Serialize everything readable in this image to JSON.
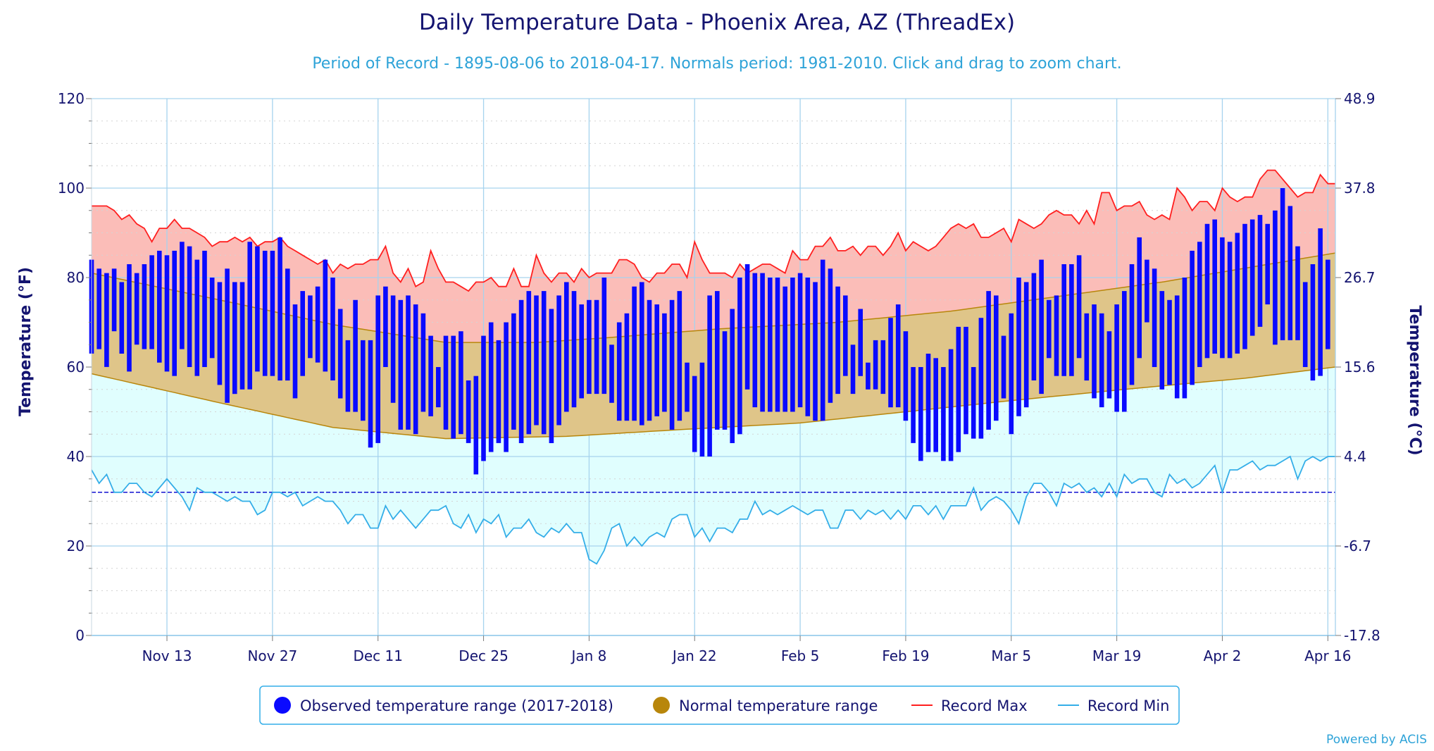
{
  "chart_data": {
    "type": "range-bar",
    "title": "Daily Temperature Data - Phoenix Area, AZ (ThreadEx)",
    "subtitle": "Period of Record - 1895-08-06 to 2018-04-17. Normals period: 1981-2010. Click and drag to zoom chart.",
    "ylabel_left": "Temperature (°F)",
    "ylabel_right": "Temperature (°C)",
    "ylim": [
      0,
      120
    ],
    "yticks_f": [
      "0",
      "20",
      "40",
      "60",
      "80",
      "100",
      "120"
    ],
    "yticks_c": [
      "-17.8",
      "-6.7",
      "4.4",
      "15.6",
      "26.7",
      "37.8",
      "48.9"
    ],
    "x_start": "2017-11-03",
    "x_end": "2018-04-17",
    "xticks": [
      {
        "date": "2017-11-13",
        "label": "Nov 13"
      },
      {
        "date": "2017-11-27",
        "label": "Nov 27"
      },
      {
        "date": "2017-12-11",
        "label": "Dec 11"
      },
      {
        "date": "2017-12-25",
        "label": "Dec 25"
      },
      {
        "date": "2018-01-08",
        "label": "Jan 8"
      },
      {
        "date": "2018-01-22",
        "label": "Jan 22"
      },
      {
        "date": "2018-02-05",
        "label": "Feb 5"
      },
      {
        "date": "2018-02-19",
        "label": "Feb 19"
      },
      {
        "date": "2018-03-05",
        "label": "Mar 5"
      },
      {
        "date": "2018-03-19",
        "label": "Mar 19"
      },
      {
        "date": "2018-04-02",
        "label": "Apr 2"
      },
      {
        "date": "2018-04-16",
        "label": "Apr 16"
      }
    ],
    "freezing_line_f": 32,
    "colors": {
      "observed": "#0a0aff",
      "normal_fill": "#dfc589",
      "normal_edge": "#b8860b",
      "record_max": "#ff1f1f",
      "record_max_fill": "#fbbdb8",
      "record_min": "#34aee8",
      "record_min_fill": "#e0fefe",
      "gridline": "#a6d3ee",
      "freezing": "#1010d0"
    },
    "normal_high_anchors": [
      {
        "date": "2017-11-03",
        "value": 81
      },
      {
        "date": "2017-11-20",
        "value": 75
      },
      {
        "date": "2017-12-05",
        "value": 69.5
      },
      {
        "date": "2017-12-20",
        "value": 65.5
      },
      {
        "date": "2018-01-01",
        "value": 65.5
      },
      {
        "date": "2018-01-10",
        "value": 66.5
      },
      {
        "date": "2018-01-25",
        "value": 68.5
      },
      {
        "date": "2018-02-10",
        "value": 70
      },
      {
        "date": "2018-02-25",
        "value": 72.5
      },
      {
        "date": "2018-03-10",
        "value": 75.5
      },
      {
        "date": "2018-03-25",
        "value": 79
      },
      {
        "date": "2018-04-10",
        "value": 83.5
      },
      {
        "date": "2018-04-17",
        "value": 85.5
      }
    ],
    "normal_low_anchors": [
      {
        "date": "2017-11-03",
        "value": 58.5
      },
      {
        "date": "2017-11-20",
        "value": 52
      },
      {
        "date": "2017-12-05",
        "value": 46.5
      },
      {
        "date": "2017-12-20",
        "value": 44
      },
      {
        "date": "2018-01-05",
        "value": 44.5
      },
      {
        "date": "2018-01-20",
        "value": 46
      },
      {
        "date": "2018-02-05",
        "value": 47.5
      },
      {
        "date": "2018-02-19",
        "value": 50
      },
      {
        "date": "2018-03-05",
        "value": 52.5
      },
      {
        "date": "2018-03-20",
        "value": 55
      },
      {
        "date": "2018-04-05",
        "value": 57.5
      },
      {
        "date": "2018-04-17",
        "value": 60
      }
    ],
    "record_max": [
      96,
      96,
      96,
      95,
      93,
      94,
      92,
      91,
      88,
      91,
      91,
      93,
      91,
      91,
      90,
      89,
      87,
      88,
      88,
      89,
      88,
      89,
      87,
      88,
      88,
      89,
      87,
      86,
      85,
      84,
      83,
      84,
      81,
      83,
      82,
      83,
      83,
      84,
      84,
      87,
      81,
      79,
      82,
      78,
      79,
      86,
      82,
      79,
      79,
      78,
      77,
      79,
      79,
      80,
      78,
      78,
      82,
      78,
      78,
      85,
      81,
      79,
      81,
      81,
      79,
      82,
      80,
      81,
      81,
      81,
      84,
      84,
      83,
      80,
      79,
      81,
      81,
      83,
      83,
      80,
      88,
      84,
      81,
      81,
      81,
      80,
      83,
      81,
      82,
      83,
      83,
      82,
      81,
      86,
      84,
      84,
      87,
      87,
      89,
      86,
      86,
      87,
      85,
      87,
      87,
      85,
      87,
      90,
      86,
      88,
      87,
      86,
      87,
      89,
      91,
      92,
      91,
      92,
      89,
      89,
      90,
      91,
      88,
      93,
      92,
      91,
      92,
      94,
      95,
      94,
      94,
      92,
      95,
      92,
      99,
      99,
      95,
      96,
      96,
      97,
      94,
      93,
      94,
      93,
      100,
      98,
      95,
      97,
      97,
      95,
      100,
      98,
      97,
      98,
      98,
      102,
      104,
      104,
      102,
      100,
      98,
      99,
      99,
      103,
      101,
      101
    ],
    "record_min": [
      37,
      34,
      36,
      32,
      32,
      34,
      34,
      32,
      31,
      33,
      35,
      33,
      31,
      28,
      33,
      32,
      32,
      31,
      30,
      31,
      30,
      30,
      27,
      28,
      32,
      32,
      31,
      32,
      29,
      30,
      31,
      30,
      30,
      28,
      25,
      27,
      27,
      24,
      24,
      29,
      26,
      28,
      26,
      24,
      26,
      28,
      28,
      29,
      25,
      24,
      27,
      23,
      26,
      25,
      27,
      22,
      24,
      24,
      26,
      23,
      22,
      24,
      23,
      25,
      23,
      23,
      17,
      16,
      19,
      24,
      25,
      20,
      22,
      20,
      22,
      23,
      22,
      26,
      27,
      27,
      22,
      24,
      21,
      24,
      24,
      23,
      26,
      26,
      30,
      27,
      28,
      27,
      28,
      29,
      28,
      27,
      28,
      28,
      24,
      24,
      28,
      28,
      26,
      28,
      27,
      28,
      26,
      28,
      26,
      29,
      29,
      27,
      29,
      26,
      29,
      29,
      29,
      33,
      28,
      30,
      31,
      30,
      28,
      25,
      31,
      34,
      34,
      32,
      29,
      34,
      33,
      34,
      32,
      33,
      31,
      34,
      31,
      36,
      34,
      35,
      35,
      32,
      31,
      36,
      34,
      35,
      33,
      34,
      36,
      38,
      32,
      37,
      37,
      38,
      39,
      37,
      38,
      38,
      39,
      40,
      35,
      39,
      40,
      39,
      40,
      40
    ],
    "observed": [
      [
        63,
        84
      ],
      [
        64,
        82
      ],
      [
        60,
        81
      ],
      [
        68,
        82
      ],
      [
        63,
        79
      ],
      [
        59,
        83
      ],
      [
        65,
        81
      ],
      [
        64,
        83
      ],
      [
        64,
        85
      ],
      [
        61,
        86
      ],
      [
        59,
        85
      ],
      [
        58,
        86
      ],
      [
        64,
        88
      ],
      [
        60,
        87
      ],
      [
        58,
        84
      ],
      [
        60,
        86
      ],
      [
        62,
        80
      ],
      [
        56,
        79
      ],
      [
        52,
        82
      ],
      [
        54,
        79
      ],
      [
        55,
        79
      ],
      [
        55,
        88
      ],
      [
        59,
        87
      ],
      [
        58,
        86
      ],
      [
        58,
        86
      ],
      [
        57,
        89
      ],
      [
        57,
        82
      ],
      [
        53,
        74
      ],
      [
        58,
        77
      ],
      [
        62,
        76
      ],
      [
        61,
        78
      ],
      [
        59,
        84
      ],
      [
        57,
        80
      ],
      [
        53,
        73
      ],
      [
        50,
        66
      ],
      [
        50,
        75
      ],
      [
        48,
        66
      ],
      [
        42,
        66
      ],
      [
        43,
        76
      ],
      [
        60,
        78
      ],
      [
        52,
        76
      ],
      [
        46,
        75
      ],
      [
        46,
        76
      ],
      [
        45,
        74
      ],
      [
        50,
        72
      ],
      [
        49,
        67
      ],
      [
        51,
        60
      ],
      [
        46,
        67
      ],
      [
        44,
        67
      ],
      [
        45,
        68
      ],
      [
        43,
        57
      ],
      [
        36,
        58
      ],
      [
        39,
        67
      ],
      [
        41,
        70
      ],
      [
        43,
        66
      ],
      [
        41,
        70
      ],
      [
        46,
        72
      ],
      [
        43,
        75
      ],
      [
        45,
        77
      ],
      [
        47,
        76
      ],
      [
        45,
        77
      ],
      [
        43,
        73
      ],
      [
        47,
        76
      ],
      [
        50,
        79
      ],
      [
        51,
        77
      ],
      [
        53,
        74
      ],
      [
        54,
        75
      ],
      [
        54,
        75
      ],
      [
        54,
        80
      ],
      [
        52,
        65
      ],
      [
        48,
        70
      ],
      [
        48,
        72
      ],
      [
        48,
        78
      ],
      [
        47,
        79
      ],
      [
        48,
        75
      ],
      [
        49,
        74
      ],
      [
        50,
        72
      ],
      [
        46,
        75
      ],
      [
        48,
        77
      ],
      [
        50,
        61
      ],
      [
        41,
        58
      ],
      [
        40,
        61
      ],
      [
        40,
        76
      ],
      [
        46,
        77
      ],
      [
        46,
        68
      ],
      [
        43,
        73
      ],
      [
        45,
        80
      ],
      [
        55,
        83
      ],
      [
        51,
        81
      ],
      [
        50,
        81
      ],
      [
        50,
        80
      ],
      [
        50,
        80
      ],
      [
        50,
        78
      ],
      [
        50,
        80
      ],
      [
        51,
        81
      ],
      [
        49,
        80
      ],
      [
        48,
        79
      ],
      [
        48,
        84
      ],
      [
        52,
        82
      ],
      [
        54,
        78
      ],
      [
        58,
        76
      ],
      [
        54,
        65
      ],
      [
        58,
        73
      ],
      [
        55,
        61
      ],
      [
        55,
        66
      ],
      [
        54,
        66
      ],
      [
        51,
        71
      ],
      [
        51,
        74
      ],
      [
        48,
        68
      ],
      [
        43,
        60
      ],
      [
        39,
        60
      ],
      [
        41,
        63
      ],
      [
        41,
        62
      ],
      [
        39,
        60
      ],
      [
        39,
        64
      ],
      [
        41,
        69
      ],
      [
        45,
        69
      ],
      [
        44,
        60
      ],
      [
        44,
        71
      ],
      [
        46,
        77
      ],
      [
        48,
        76
      ],
      [
        53,
        67
      ],
      [
        45,
        72
      ],
      [
        49,
        80
      ],
      [
        51,
        79
      ],
      [
        57,
        81
      ],
      [
        54,
        84
      ],
      [
        62,
        75
      ],
      [
        58,
        76
      ],
      [
        58,
        83
      ],
      [
        58,
        83
      ],
      [
        62,
        85
      ],
      [
        57,
        72
      ],
      [
        53,
        74
      ],
      [
        51,
        72
      ],
      [
        53,
        68
      ],
      [
        50,
        74
      ],
      [
        50,
        77
      ],
      [
        56,
        83
      ],
      [
        62,
        89
      ],
      [
        70,
        84
      ],
      [
        60,
        82
      ],
      [
        55,
        77
      ],
      [
        56,
        75
      ],
      [
        53,
        76
      ],
      [
        53,
        80
      ],
      [
        56,
        86
      ],
      [
        60,
        88
      ],
      [
        62,
        92
      ],
      [
        63,
        93
      ],
      [
        62,
        89
      ],
      [
        62,
        88
      ],
      [
        63,
        90
      ],
      [
        64,
        92
      ],
      [
        67,
        93
      ],
      [
        69,
        94
      ],
      [
        74,
        92
      ],
      [
        65,
        95
      ],
      [
        66,
        100
      ],
      [
        66,
        96
      ],
      [
        66,
        87
      ],
      [
        60,
        79
      ],
      [
        57,
        83
      ],
      [
        58,
        91
      ],
      [
        64,
        84
      ]
    ]
  },
  "legend": {
    "observed": "Observed temperature range (2017-2018)",
    "normal": "Normal temperature range",
    "record_max": "Record Max",
    "record_min": "Record Min"
  },
  "credit": "Powered by ACIS"
}
